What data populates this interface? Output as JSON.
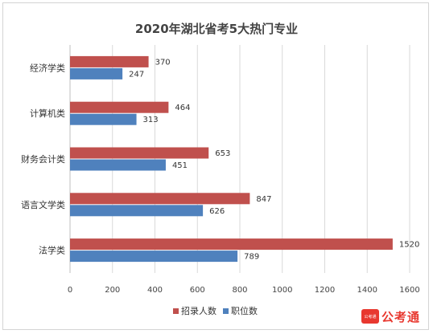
{
  "chart_data": {
    "type": "bar",
    "orientation": "horizontal",
    "title": "2020年湖北省考5大热门专业",
    "categories": [
      "经济学类",
      "计算机类",
      "财务会计类",
      "语言文学类",
      "法学类"
    ],
    "series": [
      {
        "name": "招录人数",
        "values": [
          370,
          464,
          653,
          847,
          1520
        ],
        "color": "#c0504d"
      },
      {
        "name": "职位数",
        "values": [
          247,
          313,
          451,
          626,
          789
        ],
        "color": "#4f81bd"
      }
    ],
    "xlim": [
      0,
      1600
    ],
    "xticks": [
      0,
      200,
      400,
      600,
      800,
      1000,
      1200,
      1400,
      1600
    ],
    "grid": true,
    "legend": "bottom"
  },
  "logo": {
    "text": "公考通",
    "badge_text": "公考通"
  }
}
